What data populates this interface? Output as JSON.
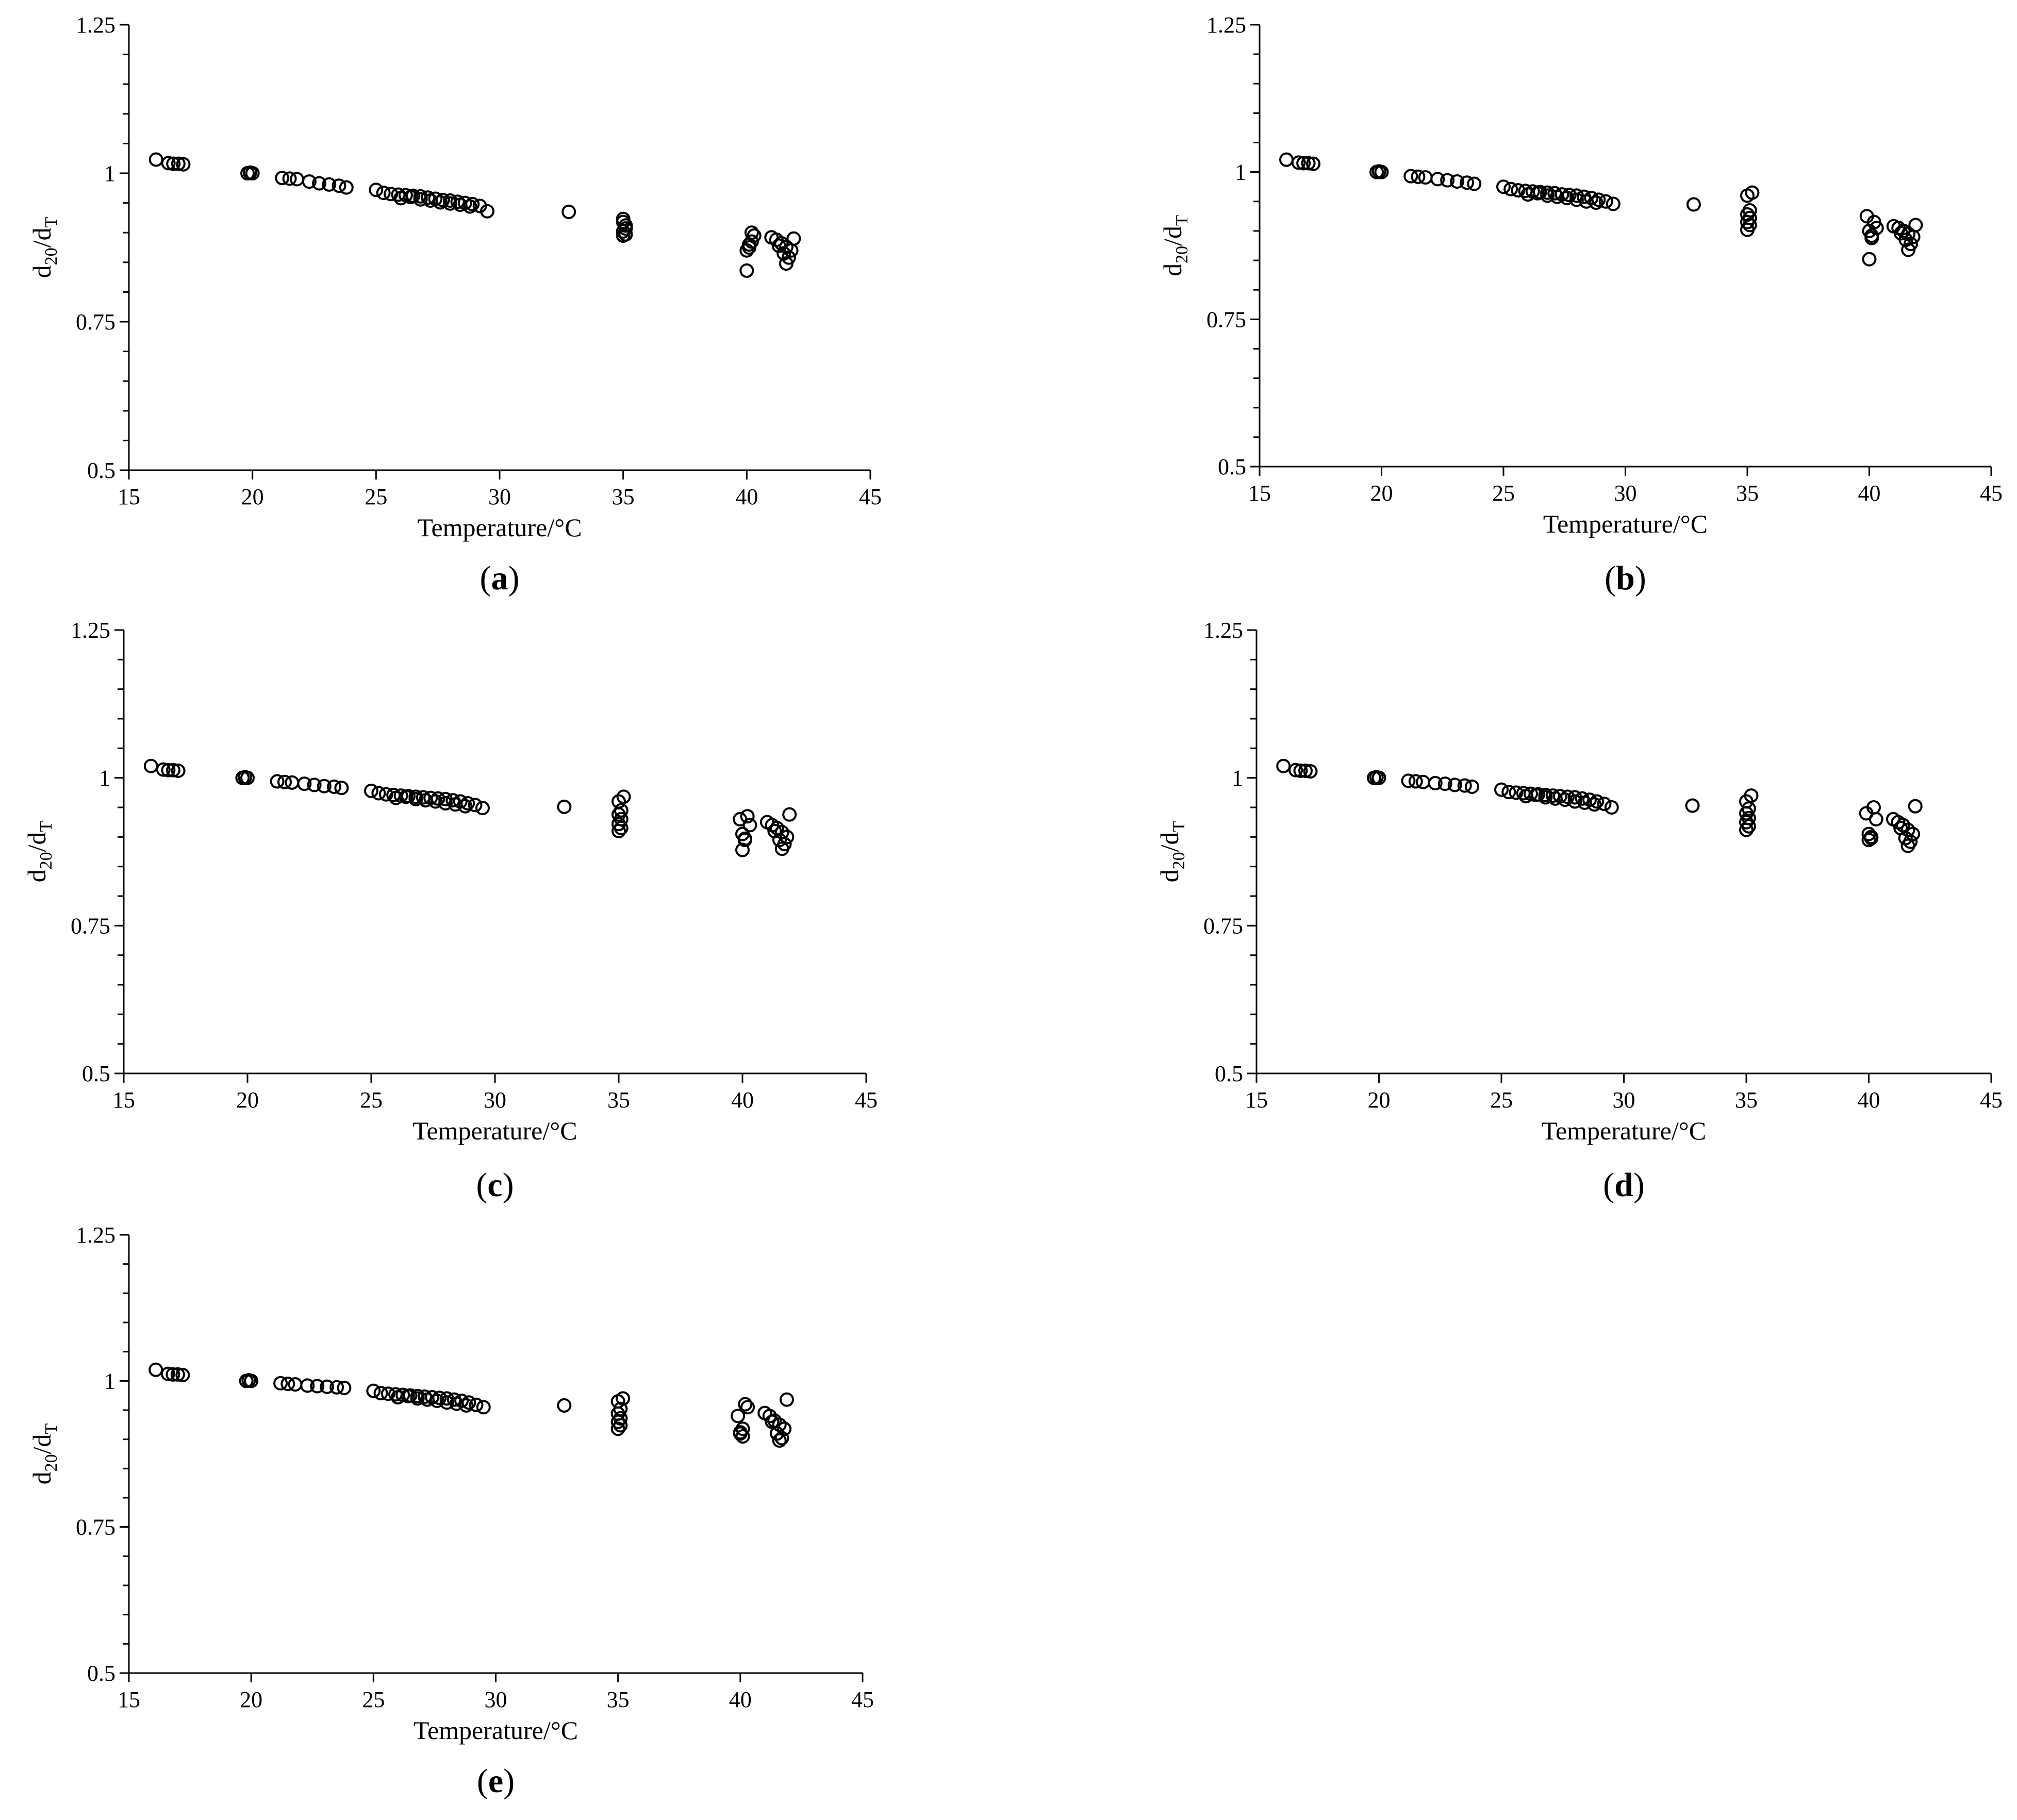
{
  "chart_data": [
    {
      "type": "scatter",
      "panel_label": "(a)",
      "label_letter": "a",
      "xlabel": "Temperature/°C",
      "ylabel": {
        "main": "d",
        "sub1": "20",
        "mid": "/d",
        "sub2": "T"
      },
      "xlim": [
        15,
        45
      ],
      "ylim": [
        0.5,
        1.25
      ],
      "x_ticks": [
        "15",
        "20",
        "25",
        "30",
        "35",
        "40",
        "45"
      ],
      "y_ticks": [
        "0.5",
        "0.75",
        "1",
        "1.25"
      ],
      "grid": false,
      "groups": [
        {
          "x": [
            16.1
          ],
          "y": [
            1.023
          ]
        },
        {
          "x": [
            16.6,
            16.8,
            17.0,
            17.2
          ],
          "y": [
            1.017,
            1.016,
            1.016,
            1.015
          ]
        },
        {
          "x": [
            19.8,
            19.9,
            20.0
          ],
          "y": [
            1.0,
            1.001,
            1.0
          ]
        },
        {
          "x": [
            21.2,
            21.5,
            21.8,
            22.3,
            22.7,
            23.1,
            23.5,
            23.8
          ],
          "y": [
            0.992,
            0.991,
            0.99,
            0.986,
            0.983,
            0.981,
            0.979,
            0.976
          ]
        },
        {
          "x": [
            25.0,
            25.3,
            25.6,
            25.9,
            26.2,
            26.5,
            26.8,
            27.1,
            27.4,
            27.7,
            28.0,
            28.3,
            28.6,
            28.9,
            29.2,
            29.5
          ],
          "y": [
            0.972,
            0.967,
            0.965,
            0.964,
            0.963,
            0.962,
            0.961,
            0.959,
            0.957,
            0.955,
            0.954,
            0.952,
            0.95,
            0.948,
            0.945,
            0.936
          ]
        },
        {
          "x": [
            26.0,
            26.4,
            26.8,
            27.2,
            27.6,
            28.0,
            28.4,
            28.8
          ],
          "y": [
            0.958,
            0.96,
            0.956,
            0.954,
            0.951,
            0.949,
            0.947,
            0.944
          ]
        },
        {
          "x": [
            32.8
          ],
          "y": [
            0.935
          ]
        },
        {
          "x": [
            35.0,
            35.0,
            35.1,
            35.1,
            35.0,
            35.1,
            35.0
          ],
          "y": [
            0.923,
            0.918,
            0.912,
            0.907,
            0.902,
            0.897,
            0.895
          ]
        },
        {
          "x": [
            40.0,
            40.1,
            40.2,
            40.3,
            40.2,
            40.1,
            40.0
          ],
          "y": [
            0.836,
            0.875,
            0.885,
            0.895,
            0.9,
            0.88,
            0.87
          ]
        },
        {
          "x": [
            41.0,
            41.2,
            41.4,
            41.6,
            41.8,
            41.5,
            41.3,
            41.7,
            41.9,
            41.6
          ],
          "y": [
            0.892,
            0.888,
            0.882,
            0.876,
            0.87,
            0.865,
            0.878,
            0.858,
            0.89,
            0.848
          ]
        }
      ]
    },
    {
      "type": "scatter",
      "panel_label": "(b)",
      "label_letter": "b",
      "xlabel": "Temperature/°C",
      "ylabel": {
        "main": "d",
        "sub1": "20",
        "mid": "/d",
        "sub2": "T"
      },
      "xlim": [
        15,
        45
      ],
      "ylim": [
        0.5,
        1.25
      ],
      "x_ticks": [
        "15",
        "20",
        "25",
        "30",
        "35",
        "40",
        "45"
      ],
      "y_ticks": [
        "0.5",
        "0.75",
        "1",
        "1.25"
      ],
      "grid": false,
      "groups": [
        {
          "x": [
            16.1
          ],
          "y": [
            1.021
          ]
        },
        {
          "x": [
            16.6,
            16.8,
            17.0,
            17.2
          ],
          "y": [
            1.016,
            1.015,
            1.015,
            1.014
          ]
        },
        {
          "x": [
            19.8,
            19.9,
            20.0
          ],
          "y": [
            1.0,
            1.001,
            1.0
          ]
        },
        {
          "x": [
            21.2,
            21.5,
            21.8,
            22.3,
            22.7,
            23.1,
            23.5,
            23.8
          ],
          "y": [
            0.993,
            0.992,
            0.991,
            0.988,
            0.986,
            0.984,
            0.982,
            0.98
          ]
        },
        {
          "x": [
            25.0,
            25.3,
            25.6,
            25.9,
            26.2,
            26.5,
            26.8,
            27.1,
            27.4,
            27.7,
            28.0,
            28.3,
            28.6,
            28.9,
            29.2,
            29.5
          ],
          "y": [
            0.975,
            0.971,
            0.969,
            0.968,
            0.967,
            0.966,
            0.965,
            0.964,
            0.962,
            0.961,
            0.96,
            0.958,
            0.956,
            0.953,
            0.95,
            0.946
          ]
        },
        {
          "x": [
            26.0,
            26.4,
            26.8,
            27.2,
            27.6,
            28.0,
            28.4,
            28.8
          ],
          "y": [
            0.962,
            0.964,
            0.96,
            0.958,
            0.956,
            0.953,
            0.95,
            0.948
          ]
        },
        {
          "x": [
            32.8
          ],
          "y": [
            0.945
          ]
        },
        {
          "x": [
            35.0,
            35.1,
            35.0,
            35.1,
            35.0,
            35.1,
            35.2,
            35.0
          ],
          "y": [
            0.96,
            0.935,
            0.928,
            0.922,
            0.915,
            0.91,
            0.965,
            0.902
          ]
        },
        {
          "x": [
            39.9,
            40.0,
            40.1,
            40.2,
            40.3,
            40.1,
            40.0
          ],
          "y": [
            0.925,
            0.9,
            0.892,
            0.915,
            0.905,
            0.888,
            0.852
          ]
        },
        {
          "x": [
            41.0,
            41.2,
            41.4,
            41.6,
            41.8,
            41.5,
            41.3,
            41.7,
            41.9,
            41.6
          ],
          "y": [
            0.908,
            0.905,
            0.9,
            0.895,
            0.89,
            0.885,
            0.896,
            0.878,
            0.91,
            0.868
          ]
        }
      ]
    },
    {
      "type": "scatter",
      "panel_label": "(c)",
      "label_letter": "c",
      "xlabel": "Temperature/°C",
      "ylabel": {
        "main": "d",
        "sub1": "20",
        "mid": "/d",
        "sub2": "T"
      },
      "xlim": [
        15,
        45
      ],
      "ylim": [
        0.5,
        1.25
      ],
      "x_ticks": [
        "15",
        "20",
        "25",
        "30",
        "35",
        "40",
        "45"
      ],
      "y_ticks": [
        "0.5",
        "0.75",
        "1",
        "1.25"
      ],
      "grid": false,
      "groups": [
        {
          "x": [
            16.1
          ],
          "y": [
            1.02
          ]
        },
        {
          "x": [
            16.6,
            16.8,
            17.0,
            17.2
          ],
          "y": [
            1.014,
            1.013,
            1.013,
            1.012
          ]
        },
        {
          "x": [
            19.8,
            19.9,
            20.0
          ],
          "y": [
            1.0,
            1.001,
            1.0
          ]
        },
        {
          "x": [
            21.2,
            21.5,
            21.8,
            22.3,
            22.7,
            23.1,
            23.5,
            23.8
          ],
          "y": [
            0.994,
            0.993,
            0.992,
            0.99,
            0.988,
            0.986,
            0.985,
            0.983
          ]
        },
        {
          "x": [
            25.0,
            25.3,
            25.6,
            25.9,
            26.2,
            26.5,
            26.8,
            27.1,
            27.4,
            27.7,
            28.0,
            28.3,
            28.6,
            28.9,
            29.2,
            29.5
          ],
          "y": [
            0.978,
            0.974,
            0.972,
            0.971,
            0.97,
            0.969,
            0.968,
            0.967,
            0.966,
            0.965,
            0.964,
            0.962,
            0.96,
            0.957,
            0.954,
            0.949
          ]
        },
        {
          "x": [
            26.0,
            26.4,
            26.8,
            27.2,
            27.6,
            28.0,
            28.4,
            28.8
          ],
          "y": [
            0.966,
            0.968,
            0.964,
            0.962,
            0.96,
            0.957,
            0.955,
            0.952
          ]
        },
        {
          "x": [
            32.8
          ],
          "y": [
            0.951
          ]
        },
        {
          "x": [
            35.0,
            35.1,
            35.0,
            35.1,
            35.0,
            35.1,
            35.2,
            35.0
          ],
          "y": [
            0.96,
            0.945,
            0.938,
            0.93,
            0.922,
            0.915,
            0.968,
            0.91
          ]
        },
        {
          "x": [
            39.9,
            40.0,
            40.1,
            40.2,
            40.3,
            40.1,
            40.0
          ],
          "y": [
            0.93,
            0.905,
            0.897,
            0.935,
            0.92,
            0.895,
            0.878
          ]
        },
        {
          "x": [
            41.0,
            41.2,
            41.4,
            41.6,
            41.8,
            41.5,
            41.3,
            41.7,
            41.9,
            41.6
          ],
          "y": [
            0.925,
            0.92,
            0.915,
            0.908,
            0.9,
            0.895,
            0.91,
            0.888,
            0.938,
            0.88
          ]
        }
      ]
    },
    {
      "type": "scatter",
      "panel_label": "(d)",
      "label_letter": "d",
      "xlabel": "Temperature/°C",
      "ylabel": {
        "main": "d",
        "sub1": "20",
        "mid": "/d",
        "sub2": "T"
      },
      "xlim": [
        15,
        45
      ],
      "ylim": [
        0.5,
        1.25
      ],
      "x_ticks": [
        "15",
        "20",
        "25",
        "30",
        "35",
        "40",
        "45"
      ],
      "y_ticks": [
        "0.5",
        "0.75",
        "1",
        "1.25"
      ],
      "grid": false,
      "groups": [
        {
          "x": [
            16.1
          ],
          "y": [
            1.02
          ]
        },
        {
          "x": [
            16.6,
            16.8,
            17.0,
            17.2
          ],
          "y": [
            1.013,
            1.012,
            1.012,
            1.011
          ]
        },
        {
          "x": [
            19.8,
            19.9,
            20.0
          ],
          "y": [
            1.0,
            1.001,
            1.0
          ]
        },
        {
          "x": [
            21.2,
            21.5,
            21.8,
            22.3,
            22.7,
            23.1,
            23.5,
            23.8
          ],
          "y": [
            0.995,
            0.994,
            0.993,
            0.991,
            0.99,
            0.988,
            0.987,
            0.985
          ]
        },
        {
          "x": [
            25.0,
            25.3,
            25.6,
            25.9,
            26.2,
            26.5,
            26.8,
            27.1,
            27.4,
            27.7,
            28.0,
            28.3,
            28.6,
            28.9,
            29.2,
            29.5
          ],
          "y": [
            0.98,
            0.976,
            0.975,
            0.974,
            0.973,
            0.972,
            0.971,
            0.97,
            0.969,
            0.968,
            0.967,
            0.965,
            0.963,
            0.96,
            0.956,
            0.95
          ]
        },
        {
          "x": [
            26.0,
            26.4,
            26.8,
            27.2,
            27.6,
            28.0,
            28.4,
            28.8
          ],
          "y": [
            0.969,
            0.971,
            0.967,
            0.965,
            0.963,
            0.96,
            0.958,
            0.955
          ]
        },
        {
          "x": [
            32.8
          ],
          "y": [
            0.953
          ]
        },
        {
          "x": [
            35.0,
            35.1,
            35.0,
            35.1,
            35.0,
            35.1,
            35.2,
            35.0
          ],
          "y": [
            0.96,
            0.948,
            0.94,
            0.932,
            0.925,
            0.918,
            0.97,
            0.912
          ]
        },
        {
          "x": [
            39.9,
            40.0,
            40.1,
            40.2,
            40.3,
            40.1,
            40.0
          ],
          "y": [
            0.94,
            0.905,
            0.9,
            0.95,
            0.93,
            0.898,
            0.895
          ]
        },
        {
          "x": [
            41.0,
            41.2,
            41.4,
            41.6,
            41.8,
            41.5,
            41.3,
            41.7,
            41.9,
            41.6
          ],
          "y": [
            0.93,
            0.925,
            0.92,
            0.912,
            0.905,
            0.898,
            0.915,
            0.892,
            0.952,
            0.885
          ]
        }
      ]
    },
    {
      "type": "scatter",
      "panel_label": "(e)",
      "label_letter": "e",
      "xlabel": "Temperature/°C",
      "ylabel": {
        "main": "d",
        "sub1": "20",
        "mid": "/d",
        "sub2": "T"
      },
      "xlim": [
        15,
        45
      ],
      "ylim": [
        0.5,
        1.25
      ],
      "x_ticks": [
        "15",
        "20",
        "25",
        "30",
        "35",
        "40",
        "45"
      ],
      "y_ticks": [
        "0.5",
        "0.75",
        "1",
        "1.25"
      ],
      "grid": false,
      "groups": [
        {
          "x": [
            16.1
          ],
          "y": [
            1.019
          ]
        },
        {
          "x": [
            16.6,
            16.8,
            17.0,
            17.2
          ],
          "y": [
            1.012,
            1.011,
            1.011,
            1.01
          ]
        },
        {
          "x": [
            19.8,
            19.9,
            20.0
          ],
          "y": [
            1.0,
            1.001,
            1.0
          ]
        },
        {
          "x": [
            21.2,
            21.5,
            21.8,
            22.3,
            22.7,
            23.1,
            23.5,
            23.8
          ],
          "y": [
            0.996,
            0.995,
            0.994,
            0.992,
            0.991,
            0.99,
            0.989,
            0.988
          ]
        },
        {
          "x": [
            25.0,
            25.3,
            25.6,
            25.9,
            26.2,
            26.5,
            26.8,
            27.1,
            27.4,
            27.7,
            28.0,
            28.3,
            28.6,
            28.9,
            29.2,
            29.5
          ],
          "y": [
            0.983,
            0.979,
            0.978,
            0.977,
            0.976,
            0.975,
            0.974,
            0.973,
            0.972,
            0.971,
            0.97,
            0.968,
            0.966,
            0.963,
            0.959,
            0.955
          ]
        },
        {
          "x": [
            26.0,
            26.4,
            26.8,
            27.2,
            27.6,
            28.0,
            28.4,
            28.8
          ],
          "y": [
            0.972,
            0.974,
            0.97,
            0.968,
            0.966,
            0.963,
            0.961,
            0.958
          ]
        },
        {
          "x": [
            32.8
          ],
          "y": [
            0.958
          ]
        },
        {
          "x": [
            35.0,
            35.1,
            35.0,
            35.1,
            35.0,
            35.1,
            35.2,
            35.0
          ],
          "y": [
            0.965,
            0.952,
            0.944,
            0.936,
            0.93,
            0.924,
            0.97,
            0.918
          ]
        },
        {
          "x": [
            39.9,
            40.0,
            40.1,
            40.2,
            40.3,
            40.1,
            40.0
          ],
          "y": [
            0.94,
            0.91,
            0.905,
            0.96,
            0.955,
            0.918,
            0.912
          ]
        },
        {
          "x": [
            41.0,
            41.2,
            41.4,
            41.6,
            41.8,
            41.5,
            41.3,
            41.7,
            41.9,
            41.6
          ],
          "y": [
            0.945,
            0.94,
            0.932,
            0.925,
            0.918,
            0.91,
            0.93,
            0.902,
            0.968,
            0.898
          ]
        }
      ]
    }
  ]
}
